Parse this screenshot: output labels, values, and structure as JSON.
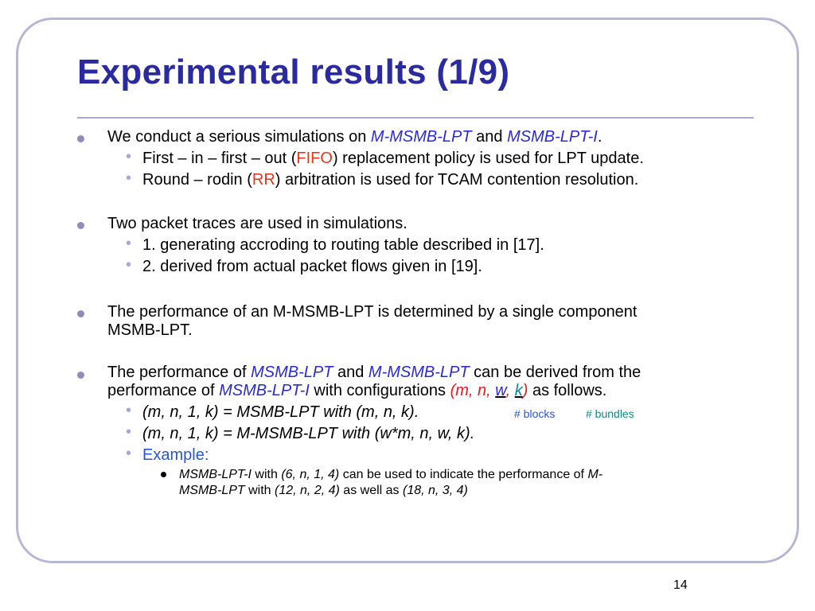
{
  "slide": {
    "title": "Experimental results (1/9)",
    "page_number": "14"
  },
  "bullets": {
    "b1": {
      "t1": "We conduct a serious simulations on ",
      "t2": "M-MSMB-LPT",
      "t3": " and ",
      "t4": "MSMB-LPT-I",
      "t5": ".",
      "sub1": {
        "t1": "First – in – first – out (",
        "t2": "FIFO",
        "t3": ") replacement policy is used for LPT update."
      },
      "sub2": {
        "t1": "Round – rodin (",
        "t2": "RR",
        "t3": ") arbitration is used for TCAM contention resolution."
      }
    },
    "b2": {
      "text": "Two packet traces are used in simulations.",
      "sub1": "1. generating accroding to routing table described in [17].",
      "sub2": "2. derived from actual packet flows given in [19]."
    },
    "b3": {
      "line1": "The performance of an M-MSMB-LPT is determined by a single component",
      "line2": "MSMB-LPT."
    },
    "b4": {
      "l1_t1": "The performance of ",
      "l1_t2": "MSMB-LPT",
      "l1_t3": " and ",
      "l1_t4": "M-MSMB-LPT",
      "l1_t5": " can be derived from the",
      "l2_t1": "performance of ",
      "l2_t2": "MSMB-LPT-I",
      "l2_t3": " with configurations ",
      "l2_t4": "(m, n, ",
      "l2_t5": "w",
      "l2_t6": ", ",
      "l2_t7": "k",
      "l2_t8": ")",
      "l2_t9": " as follows.",
      "sub1": "(m, n, 1, k) = MSMB-LPT with (m, n, k).",
      "anno_blocks": "# blocks",
      "anno_bundles": "# bundles",
      "sub2": "(m, n, 1, k) = M-MSMB-LPT with (w*m, n, w, k).",
      "sub3": "Example:",
      "ex_l1_t1": "MSMB-LPT-I",
      "ex_l1_t2": " with ",
      "ex_l1_t3": "(6, n, 1, 4)",
      "ex_l1_t4": " can be used to indicate the performance of ",
      "ex_l1_t5": "M-",
      "ex_l2_t1": "MSMB-LPT",
      "ex_l2_t2": " with ",
      "ex_l2_t3": "(12, n, 2, 4)",
      "ex_l2_t4": " as well as ",
      "ex_l2_t5": "(18, n, 3, 4)"
    }
  },
  "colors": {
    "title": "#2b2ba0",
    "frame": "#b7b7d4",
    "accent_blue": "#2b2bd0",
    "accent_red": "#e4371a",
    "accent_teal": "#0a8a8a"
  }
}
